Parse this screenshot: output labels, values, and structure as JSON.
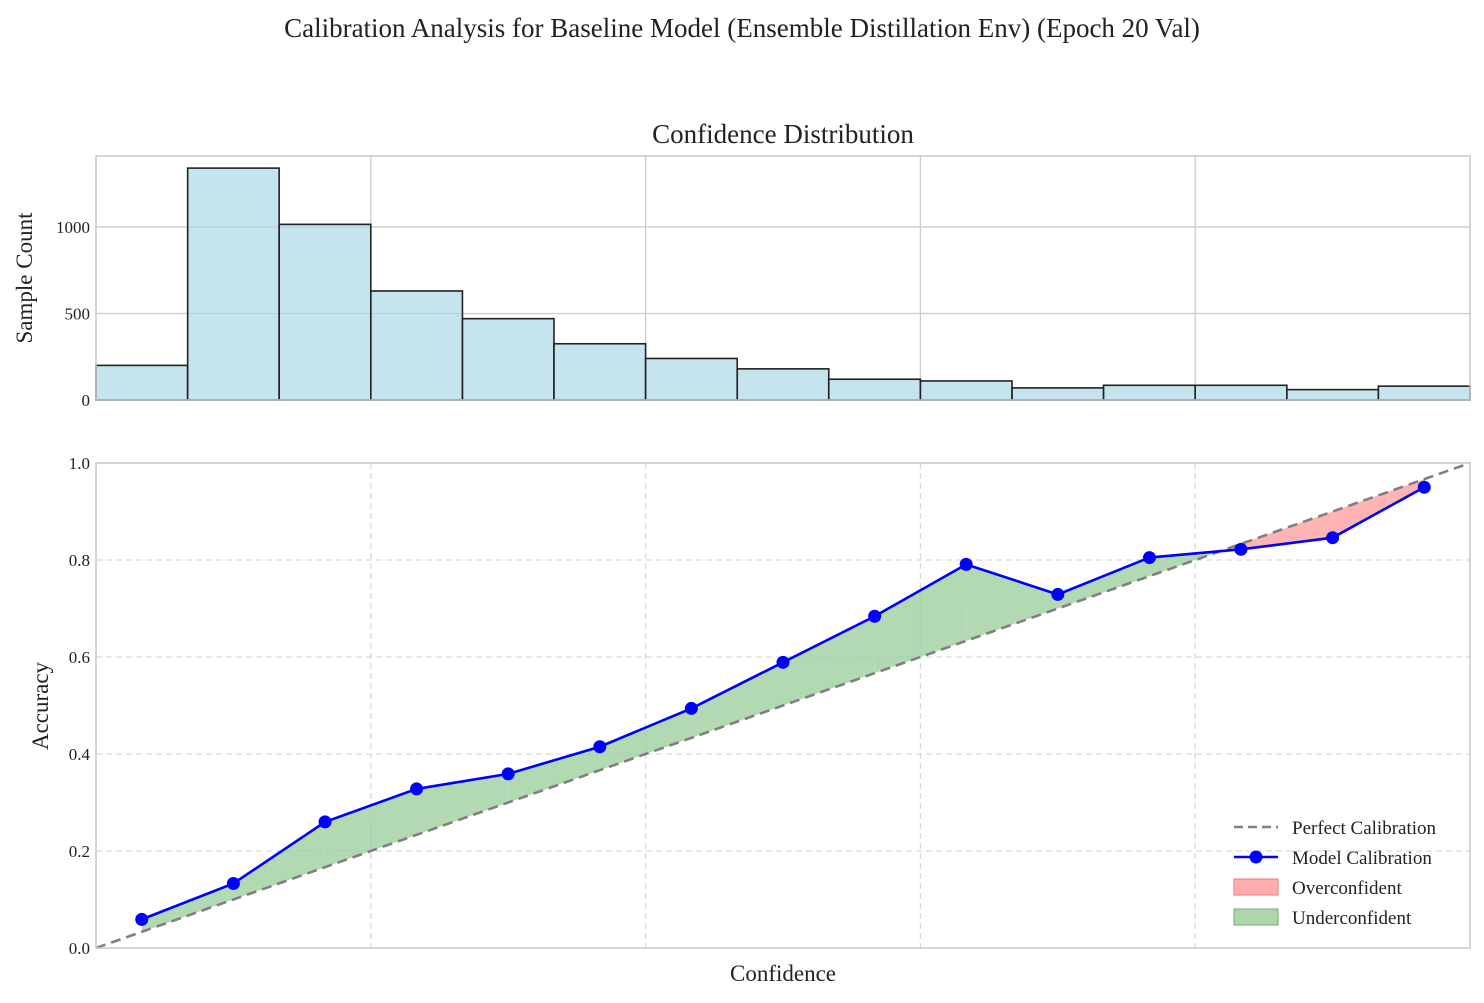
{
  "suptitle": "Calibration Analysis for Baseline Model (Ensemble Distillation Env) (Epoch 20 Val)",
  "colors": {
    "hist_fill": "#add8e6",
    "hist_edge": "#222222",
    "model_line": "#0000ff",
    "perfect_line": "#808080",
    "over_fill": "#ff9999",
    "under_fill": "#99cc99",
    "grid": "#cccccc",
    "axis_frame": "#c8c8c8"
  },
  "chart_data": [
    {
      "type": "bar",
      "title": "Confidence Distribution",
      "xlabel": "",
      "ylabel": "Sample Count",
      "bin_edges": [
        0.0,
        0.0667,
        0.1333,
        0.2,
        0.2667,
        0.3333,
        0.4,
        0.4667,
        0.5333,
        0.6,
        0.6667,
        0.7333,
        0.8,
        0.8667,
        0.9333,
        1.0
      ],
      "values": [
        200,
        1340,
        1015,
        630,
        470,
        325,
        240,
        180,
        120,
        110,
        70,
        85,
        85,
        60,
        80
      ],
      "xlim": [
        0,
        1
      ],
      "ylim": [
        0,
        1410
      ],
      "yticks": [
        0,
        500,
        1000
      ],
      "grid": true
    },
    {
      "type": "line",
      "title": "",
      "xlabel": "Confidence",
      "ylabel": "Accuracy",
      "xlim": [
        0,
        1
      ],
      "ylim": [
        0,
        1
      ],
      "yticks": [
        0.0,
        0.2,
        0.4,
        0.6,
        0.8,
        1.0
      ],
      "grid": true,
      "legend_position": "lower-right",
      "series": [
        {
          "name": "Perfect Calibration",
          "style": "dashed",
          "x": [
            0,
            1
          ],
          "y": [
            0,
            1
          ]
        },
        {
          "name": "Model Calibration",
          "style": "solid-markers",
          "x": [
            0.0333,
            0.1,
            0.1667,
            0.2333,
            0.3,
            0.3667,
            0.4333,
            0.5,
            0.5667,
            0.6333,
            0.7,
            0.7667,
            0.8333,
            0.9,
            0.9667
          ],
          "y": [
            0.059,
            0.133,
            0.26,
            0.328,
            0.359,
            0.415,
            0.494,
            0.589,
            0.684,
            0.791,
            0.729,
            0.805,
            0.822,
            0.846,
            0.95
          ]
        }
      ],
      "fills": [
        {
          "name": "Overconfident"
        },
        {
          "name": "Underconfident"
        }
      ]
    }
  ]
}
